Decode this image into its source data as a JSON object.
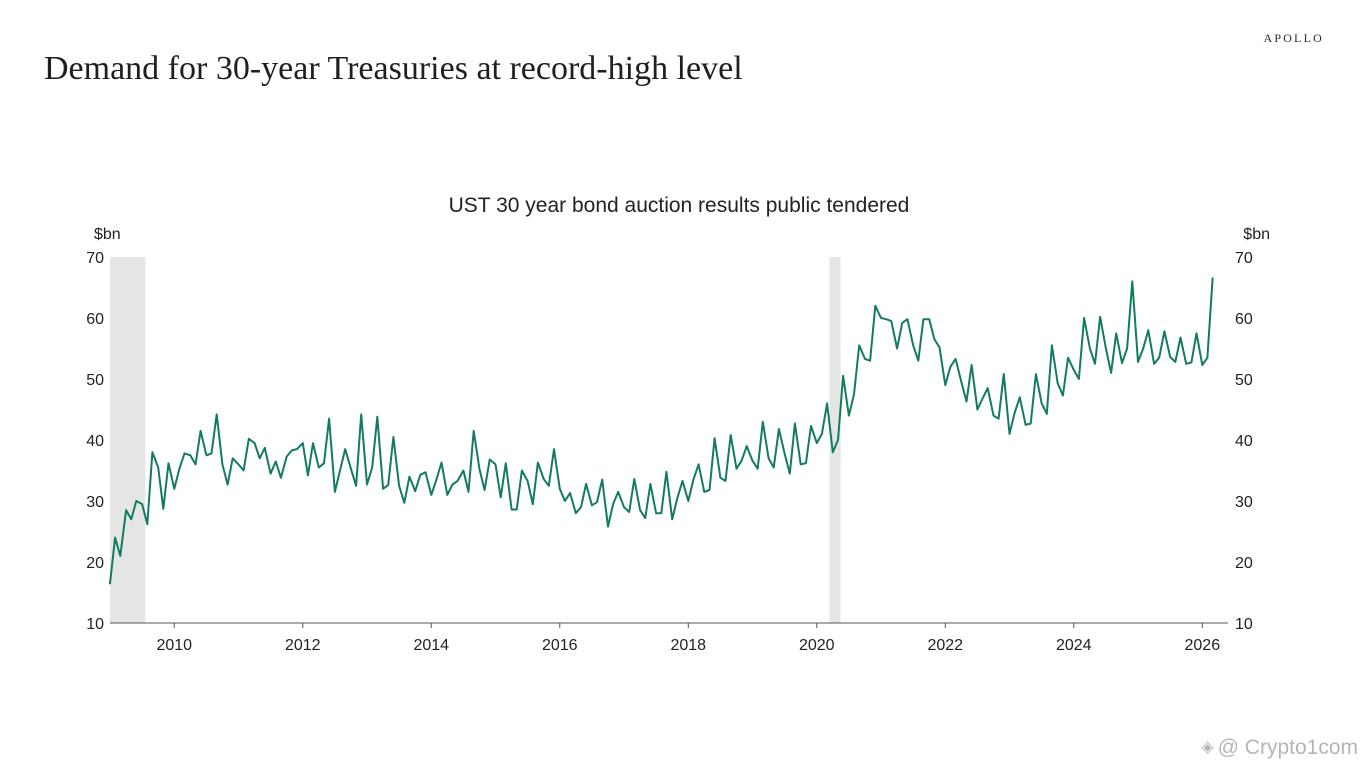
{
  "brand": "APOLLO",
  "headline": "Demand for 30-year Treasuries at record-high level",
  "watermark": {
    "text": "@ Crypto1com",
    "icon": "binance-diamond-icon"
  },
  "chart_data": {
    "type": "line",
    "title": "UST 30 year bond auction results public tendered",
    "ylabel_left": "$bn",
    "ylabel_right": "$bn",
    "ylim": [
      10,
      70
    ],
    "yticks": [
      70,
      60,
      50,
      40,
      30,
      20,
      10
    ],
    "xlim": [
      2009.0,
      2026.4
    ],
    "xticks": [
      2010,
      2012,
      2014,
      2016,
      2018,
      2020,
      2022,
      2024,
      2026
    ],
    "grid": false,
    "legend": "none",
    "colors": {
      "line": "#137a63",
      "recession": "#e3e6e5",
      "axis": "#555555"
    },
    "recessions": [
      {
        "start": 2009.0,
        "end": 2009.55
      },
      {
        "start": 2020.2,
        "end": 2020.37
      }
    ],
    "series": [
      {
        "x": [
          2009.0,
          2009.08,
          2009.16,
          2009.25,
          2009.33,
          2009.41,
          2009.5,
          2009.58,
          2009.66,
          2009.75,
          2009.83,
          2009.91,
          2010.0,
          2010.08,
          2010.16,
          2010.25,
          2010.33,
          2010.41,
          2010.5,
          2010.58,
          2010.66,
          2010.75,
          2010.83,
          2010.91,
          2011.0,
          2011.08,
          2011.16,
          2011.25,
          2011.33,
          2011.41,
          2011.5,
          2011.58,
          2011.66,
          2011.75,
          2011.83,
          2011.91,
          2012.0,
          2012.08,
          2012.16,
          2012.25,
          2012.33,
          2012.41,
          2012.5,
          2012.58,
          2012.66,
          2012.75,
          2012.83,
          2012.91,
          2013.0,
          2013.08,
          2013.16,
          2013.25,
          2013.33,
          2013.41,
          2013.5,
          2013.58,
          2013.66,
          2013.75,
          2013.83,
          2013.91,
          2014.0,
          2014.08,
          2014.16,
          2014.25,
          2014.33,
          2014.41,
          2014.5,
          2014.58,
          2014.66,
          2014.75,
          2014.83,
          2014.91,
          2015.0,
          2015.08,
          2015.16,
          2015.25,
          2015.33,
          2015.41,
          2015.5,
          2015.58,
          2015.66,
          2015.75,
          2015.83,
          2015.91,
          2016.0,
          2016.08,
          2016.16,
          2016.25,
          2016.33,
          2016.41,
          2016.5,
          2016.58,
          2016.66,
          2016.75,
          2016.83,
          2016.91,
          2017.0,
          2017.08,
          2017.16,
          2017.25,
          2017.33,
          2017.41,
          2017.5,
          2017.58,
          2017.66,
          2017.75,
          2017.83,
          2017.91,
          2018.0,
          2018.08,
          2018.16,
          2018.25,
          2018.33,
          2018.41,
          2018.5,
          2018.58,
          2018.66,
          2018.75,
          2018.83,
          2018.91,
          2019.0,
          2019.08,
          2019.16,
          2019.25,
          2019.33,
          2019.41,
          2019.5,
          2019.58,
          2019.66,
          2019.75,
          2019.83,
          2019.91,
          2020.0,
          2020.08,
          2020.16,
          2020.25,
          2020.33,
          2020.41,
          2020.5,
          2020.58,
          2020.66,
          2020.75,
          2020.83,
          2020.91,
          2021.0,
          2021.08,
          2021.16,
          2021.25,
          2021.33,
          2021.41,
          2021.5,
          2021.58,
          2021.66,
          2021.75,
          2021.83,
          2021.91,
          2022.0,
          2022.08,
          2022.16,
          2022.25,
          2022.33,
          2022.41,
          2022.5,
          2022.58,
          2022.66,
          2022.75,
          2022.83,
          2022.91,
          2023.0,
          2023.08,
          2023.16,
          2023.25,
          2023.33,
          2023.41,
          2023.5,
          2023.58,
          2023.66,
          2023.75,
          2023.83,
          2023.91,
          2024.0,
          2024.08,
          2024.16,
          2024.25,
          2024.33,
          2024.41,
          2024.5,
          2024.58,
          2024.66,
          2024.75,
          2024.83,
          2024.91,
          2025.0,
          2025.08,
          2025.16,
          2025.25,
          2025.33,
          2025.41,
          2025.5,
          2025.58,
          2025.66,
          2025.75,
          2025.83,
          2025.91,
          2026.0,
          2026.08,
          2026.16
        ],
        "y": [
          16.5,
          24.0,
          21.0,
          28.5,
          27.0,
          30.0,
          29.5,
          26.2,
          38.0,
          35.5,
          28.7,
          36.2,
          32.0,
          35.3,
          37.8,
          37.5,
          36.0,
          41.5,
          37.5,
          37.8,
          44.2,
          36.0,
          32.7,
          37.0,
          36.0,
          35.0,
          40.2,
          39.5,
          37.0,
          38.7,
          34.5,
          36.5,
          33.8,
          37.3,
          38.3,
          38.5,
          39.5,
          34.2,
          39.5,
          35.5,
          36.2,
          43.5,
          31.5,
          35.0,
          38.5,
          35.3,
          32.5,
          44.2,
          32.7,
          35.5,
          43.8,
          32.0,
          32.6,
          40.5,
          32.5,
          29.7,
          34.0,
          31.6,
          34.3,
          34.7,
          31.0,
          33.5,
          36.3,
          31.0,
          32.7,
          33.3,
          35.0,
          31.5,
          41.5,
          35.2,
          31.8,
          36.8,
          36.0,
          30.6,
          36.2,
          28.6,
          28.6,
          35.0,
          33.3,
          29.5,
          36.3,
          33.6,
          32.5,
          38.5,
          32.0,
          30.0,
          31.3,
          28.0,
          29.0,
          32.8,
          29.3,
          29.8,
          33.5,
          25.8,
          29.5,
          31.5,
          29.0,
          28.2,
          33.6,
          28.5,
          27.2,
          32.8,
          28.0,
          28.0,
          34.8,
          27.0,
          30.5,
          33.3,
          30.0,
          33.5,
          36.0,
          31.5,
          31.8,
          40.3,
          33.8,
          33.3,
          40.8,
          35.3,
          36.6,
          39.0,
          36.6,
          35.3,
          43.0,
          37.0,
          35.5,
          41.8,
          37.7,
          34.5,
          42.7,
          36.0,
          36.2,
          42.3,
          39.5,
          41.0,
          46.0,
          38.0,
          40.0,
          50.5,
          44.0,
          47.5,
          55.5,
          53.3,
          53.0,
          62.0,
          60.0,
          59.8,
          59.5,
          55.0,
          59.2,
          59.8,
          55.5,
          53.0,
          59.8,
          59.8,
          56.5,
          55.2,
          49.0,
          52.0,
          53.3,
          49.5,
          46.3,
          52.3,
          45.0,
          46.8,
          48.5,
          44.0,
          43.5,
          50.8,
          41.0,
          44.5,
          47.0,
          42.5,
          42.7,
          50.8,
          46.0,
          44.3,
          55.5,
          49.3,
          47.3,
          53.5,
          51.5,
          50.0,
          60.0,
          55.0,
          52.5,
          60.2,
          55.0,
          51.0,
          57.5,
          52.6,
          55.0,
          66.0,
          52.8,
          55.0,
          58.0,
          52.5,
          53.5,
          57.8,
          53.6,
          52.8,
          56.8,
          52.5,
          52.7,
          57.5,
          52.3,
          53.5,
          66.5
        ]
      }
    ]
  }
}
